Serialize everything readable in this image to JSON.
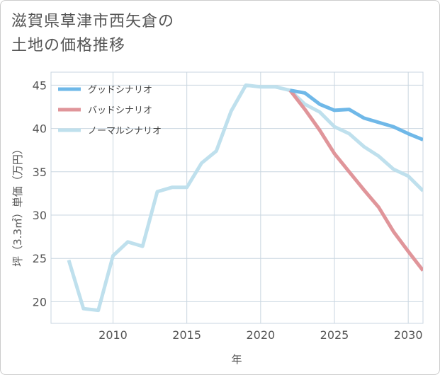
{
  "title_lines": [
    "滋賀県草津市西矢倉の",
    "土地の価格推移"
  ],
  "chart_data": {
    "type": "line",
    "xlabel": "年",
    "ylabel": "坪（3.3㎡）単価（万円）",
    "xlim": [
      2005.8,
      2031
    ],
    "ylim": [
      17.5,
      46.5
    ],
    "xticks": [
      2010,
      2015,
      2020,
      2025,
      2030
    ],
    "yticks": [
      20,
      25,
      30,
      35,
      40,
      45
    ],
    "grid": true,
    "legend_position": "top-left",
    "series": [
      {
        "name": "グッドシナリオ",
        "color": "#6fb8e8",
        "x": [
          2022,
          2023,
          2024,
          2025,
          2026,
          2027,
          2028,
          2029,
          2030,
          2031
        ],
        "values": [
          44.4,
          44.1,
          42.8,
          42.1,
          42.2,
          41.2,
          40.7,
          40.2,
          39.4,
          38.7
        ]
      },
      {
        "name": "バッドシナリオ",
        "color": "#e0959a",
        "x": [
          2022,
          2023,
          2024,
          2025,
          2026,
          2027,
          2028,
          2029,
          2030,
          2031
        ],
        "values": [
          44.4,
          42.2,
          39.8,
          37.1,
          35.0,
          32.9,
          30.9,
          28.1,
          25.8,
          23.6
        ]
      },
      {
        "name": "ノーマルシナリオ",
        "color": "#bfe0ed",
        "x": [
          2007,
          2008,
          2009,
          2010,
          2011,
          2012,
          2013,
          2014,
          2015,
          2016,
          2017,
          2018,
          2019,
          2020,
          2021,
          2022,
          2023,
          2024,
          2025,
          2026,
          2027,
          2028,
          2029,
          2030,
          2031
        ],
        "values": [
          24.8,
          19.2,
          19.0,
          25.3,
          26.9,
          26.4,
          32.7,
          33.2,
          33.2,
          36.0,
          37.4,
          42.0,
          45.0,
          44.8,
          44.8,
          44.4,
          42.8,
          41.9,
          40.2,
          39.4,
          37.9,
          36.8,
          35.3,
          34.5,
          32.8
        ]
      }
    ]
  }
}
